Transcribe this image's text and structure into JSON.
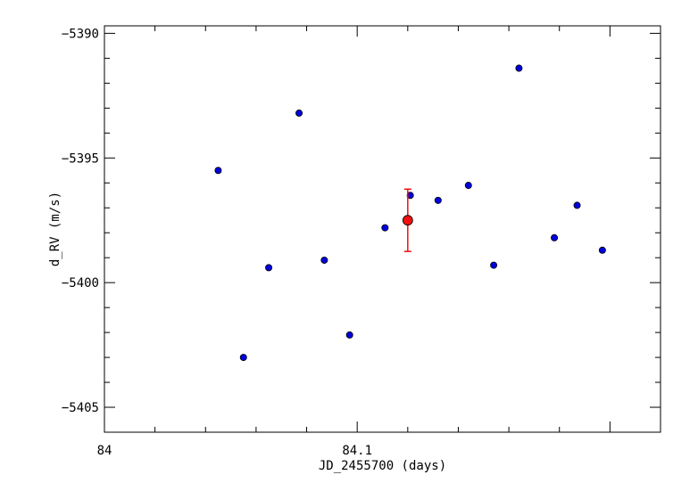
{
  "chart_data": {
    "type": "scatter",
    "title": "",
    "xlabel": "JD_2455700 (days)",
    "ylabel": "d_RV (m/s)",
    "xlim": [
      84.0,
      84.22
    ],
    "ylim": [
      -5406,
      -5389.7
    ],
    "x_ticks": [
      84.0,
      84.1
    ],
    "x_tick_labels": [
      "84",
      "84.1"
    ],
    "y_ticks": [
      -5390,
      -5395,
      -5400,
      -5405
    ],
    "y_tick_labels": [
      "−5390",
      "−5395",
      "−5400",
      "−5405"
    ],
    "grid": false,
    "series": [
      {
        "color": "#0000dd",
        "marker": "circle",
        "points": [
          {
            "x": 84.045,
            "y": -5395.5
          },
          {
            "x": 84.055,
            "y": -5403.0
          },
          {
            "x": 84.065,
            "y": -5399.4
          },
          {
            "x": 84.077,
            "y": -5393.2
          },
          {
            "x": 84.087,
            "y": -5399.1
          },
          {
            "x": 84.097,
            "y": -5402.1
          },
          {
            "x": 84.111,
            "y": -5397.8
          },
          {
            "x": 84.121,
            "y": -5396.5
          },
          {
            "x": 84.132,
            "y": -5396.7
          },
          {
            "x": 84.144,
            "y": -5396.1
          },
          {
            "x": 84.154,
            "y": -5399.3
          },
          {
            "x": 84.164,
            "y": -5391.4
          },
          {
            "x": 84.178,
            "y": -5398.2
          },
          {
            "x": 84.187,
            "y": -5396.9
          },
          {
            "x": 84.197,
            "y": -5398.7
          }
        ]
      },
      {
        "color": "#ee1111",
        "marker": "circle",
        "points": [
          {
            "x": 84.12,
            "y": -5397.5,
            "yerr": 1.25
          }
        ]
      }
    ]
  }
}
